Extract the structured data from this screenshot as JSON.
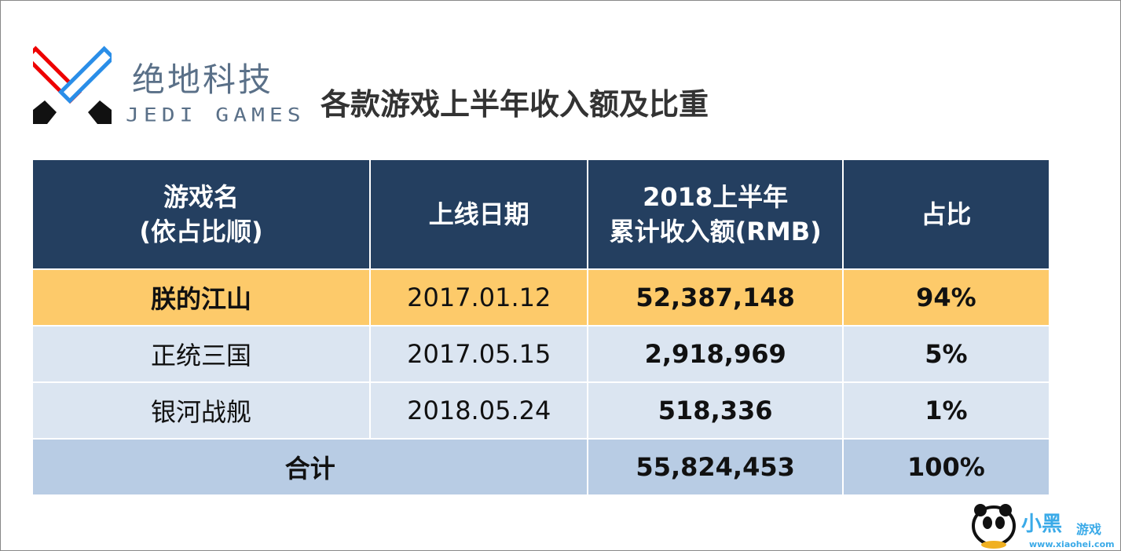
{
  "logo": {
    "cn": "绝地科技",
    "en": "JEDI GAMES"
  },
  "title": "各款游戏上半年收入额及比重",
  "table": {
    "headers": [
      "游戏名\n(依占比顺)",
      "上线日期",
      "2018上半年\n累计收入额(RMB)",
      "占比"
    ],
    "header_lines": [
      [
        "游戏名",
        "(依占比顺)"
      ],
      [
        "上线日期"
      ],
      [
        "2018上半年",
        "累计收入额(RMB)"
      ],
      [
        "占比"
      ]
    ],
    "rows": [
      {
        "name": "朕的江山",
        "date": "2017.01.12",
        "revenue": "52,387,148",
        "share": "94%"
      },
      {
        "name": "正统三国",
        "date": "2017.05.15",
        "revenue": "2,918,969",
        "share": "5%"
      },
      {
        "name": "银河战舰",
        "date": "2018.05.24",
        "revenue": "518,336",
        "share": "1%"
      }
    ],
    "total": {
      "label": "合计",
      "revenue": "55,824,453",
      "share": "100%"
    }
  },
  "watermark": {
    "text": "小黑游戏",
    "url": "www.xiaohei.com"
  },
  "colors": {
    "header": "#243f60",
    "highlight": "#fdca6a",
    "row": "#dbe5f1",
    "total": "#b8cce4"
  }
}
